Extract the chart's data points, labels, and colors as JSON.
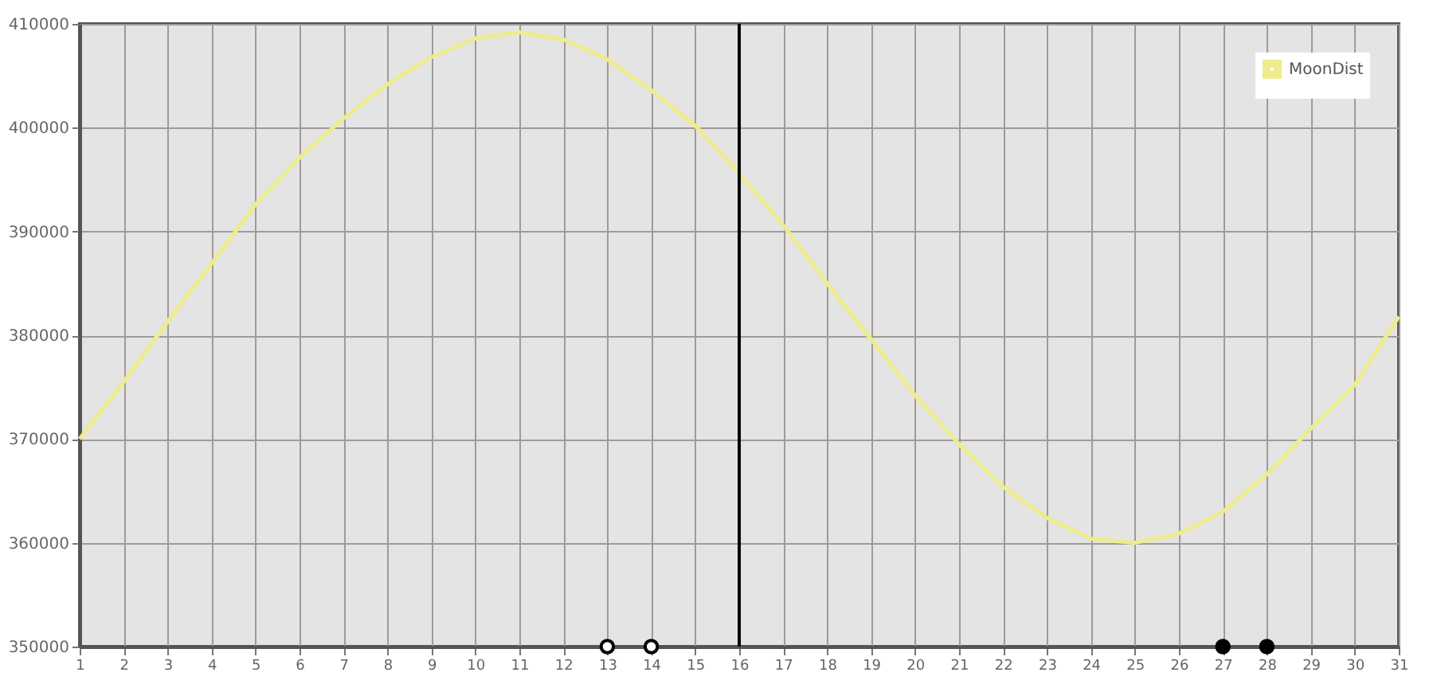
{
  "chart_data": {
    "type": "line",
    "x": [
      1,
      2,
      3,
      4,
      5,
      6,
      7,
      8,
      9,
      10,
      11,
      12,
      13,
      14,
      15,
      16,
      17,
      18,
      19,
      20,
      21,
      22,
      23,
      24,
      25,
      26,
      27,
      28,
      29,
      30,
      31
    ],
    "series": [
      {
        "name": "MoonDist",
        "color": "#eeec8c",
        "values": [
          370000,
          375500,
          381300,
          386900,
          392600,
          397100,
          400900,
          404200,
          406800,
          408600,
          409200,
          408500,
          406600,
          403600,
          400200,
          395600,
          390600,
          385000,
          379600,
          374200,
          369500,
          365400,
          362400,
          360400,
          360000,
          360900,
          363000,
          366600,
          371000,
          375200,
          381800
        ]
      },
      {
        "type": "scatter",
        "color": "#ffffff",
        "x": [
          13,
          14
        ],
        "values": [
          350000,
          350000
        ]
      },
      {
        "type": "scatter",
        "color": "#000000",
        "x": [
          27,
          28
        ],
        "values": [
          350000,
          350000
        ]
      }
    ],
    "xlim": [
      1,
      31
    ],
    "xticks": [
      1,
      2,
      3,
      4,
      5,
      6,
      7,
      8,
      9,
      10,
      11,
      12,
      13,
      14,
      15,
      16,
      17,
      18,
      19,
      20,
      21,
      22,
      23,
      24,
      25,
      26,
      27,
      28,
      29,
      30,
      31
    ],
    "ylim": [
      350000,
      410000
    ],
    "yticks": [
      350000,
      360000,
      370000,
      380000,
      390000,
      400000,
      410000
    ],
    "ref_lines": [
      {
        "axis": "x",
        "value": 16,
        "color": "#000000"
      }
    ],
    "grid": true,
    "legend": "top right",
    "line_style": "solid"
  }
}
